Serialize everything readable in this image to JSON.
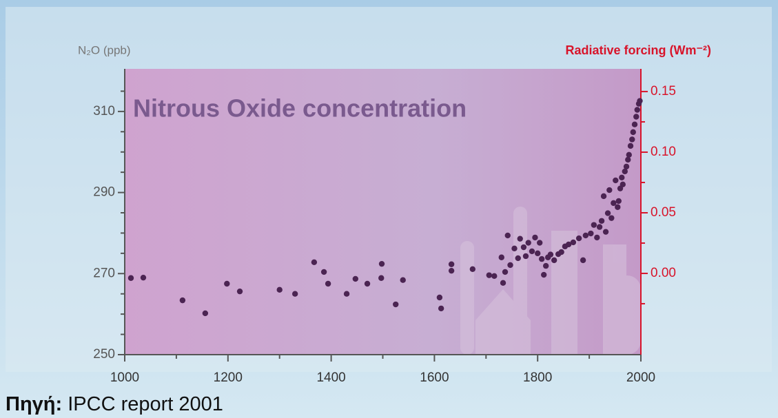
{
  "chart_data": {
    "type": "scatter",
    "title": "Nitrous Oxide concentration",
    "ylabel": "N₂O (ppb)",
    "y2label": "Radiative forcing (Wm⁻²)",
    "source_label": "Πηγή:",
    "source": "IPCC report 2001",
    "color": "#4b2452",
    "xlim": [
      1000,
      2000
    ],
    "xticks": [
      1000,
      1200,
      1400,
      1600,
      1800,
      2000
    ],
    "xminorticks": [
      1100,
      1300,
      1500,
      1700,
      1900
    ],
    "ylim": [
      250,
      320
    ],
    "yticks": [
      250,
      270,
      290,
      310
    ],
    "yminorticks": [
      255,
      260,
      265,
      275,
      280,
      285,
      295,
      300,
      305,
      315
    ],
    "y2lim": [
      -0.067,
      0.167
    ],
    "y2ticks": [
      {
        "value": 0,
        "label": "0.00"
      },
      0.05,
      {
        "value": 0.1,
        "label": "0.10"
      },
      0.15
    ],
    "y2minorticks": [
      -0.025,
      0.025,
      0.075,
      0.125
    ],
    "x": [
      1012,
      1036,
      1112,
      1156,
      1198,
      1223,
      1300,
      1330,
      1367,
      1386,
      1394,
      1430,
      1447,
      1470,
      1498,
      1497,
      1525,
      1539,
      1610,
      1613,
      1633,
      1633,
      1674,
      1706,
      1716,
      1730,
      1733,
      1737,
      1742,
      1747,
      1755,
      1762,
      1766,
      1773,
      1777,
      1782,
      1789,
      1795,
      1800,
      1804,
      1808,
      1812,
      1816,
      1820,
      1825,
      1832,
      1840,
      1846,
      1853,
      1860,
      1869,
      1880,
      1888,
      1893,
      1903,
      1909,
      1915,
      1920,
      1924,
      1928,
      1932,
      1936,
      1939,
      1943,
      1947,
      1951,
      1955,
      1957,
      1960,
      1963,
      1965,
      1969,
      1972,
      1975,
      1977,
      1980,
      1983,
      1985,
      1988,
      1991,
      1993,
      1996,
      1998
    ],
    "values": [
      268.9,
      269.0,
      263.4,
      260.2,
      267.5,
      265.6,
      266.0,
      265.0,
      272.8,
      270.4,
      267.5,
      265.0,
      268.7,
      267.5,
      272.4,
      268.9,
      262.4,
      268.4,
      264.1,
      261.4,
      272.3,
      270.7,
      271.1,
      269.6,
      269.4,
      274.0,
      267.7,
      270.4,
      279.4,
      272.1,
      276.2,
      273.8,
      278.6,
      276.5,
      274.3,
      277.6,
      275.5,
      278.9,
      275.0,
      277.6,
      273.6,
      269.7,
      271.9,
      274.0,
      274.7,
      273.3,
      274.8,
      275.3,
      276.7,
      277.2,
      277.7,
      278.7,
      273.3,
      279.4,
      279.9,
      282.0,
      278.9,
      281.5,
      283.0,
      289.1,
      280.3,
      284.9,
      290.6,
      283.7,
      287.4,
      293.0,
      286.4,
      287.9,
      291.0,
      293.7,
      292.0,
      295.2,
      296.4,
      298.1,
      299.3,
      301.5,
      303.1,
      304.9,
      306.8,
      308.7,
      310.4,
      311.9,
      312.6
    ]
  }
}
